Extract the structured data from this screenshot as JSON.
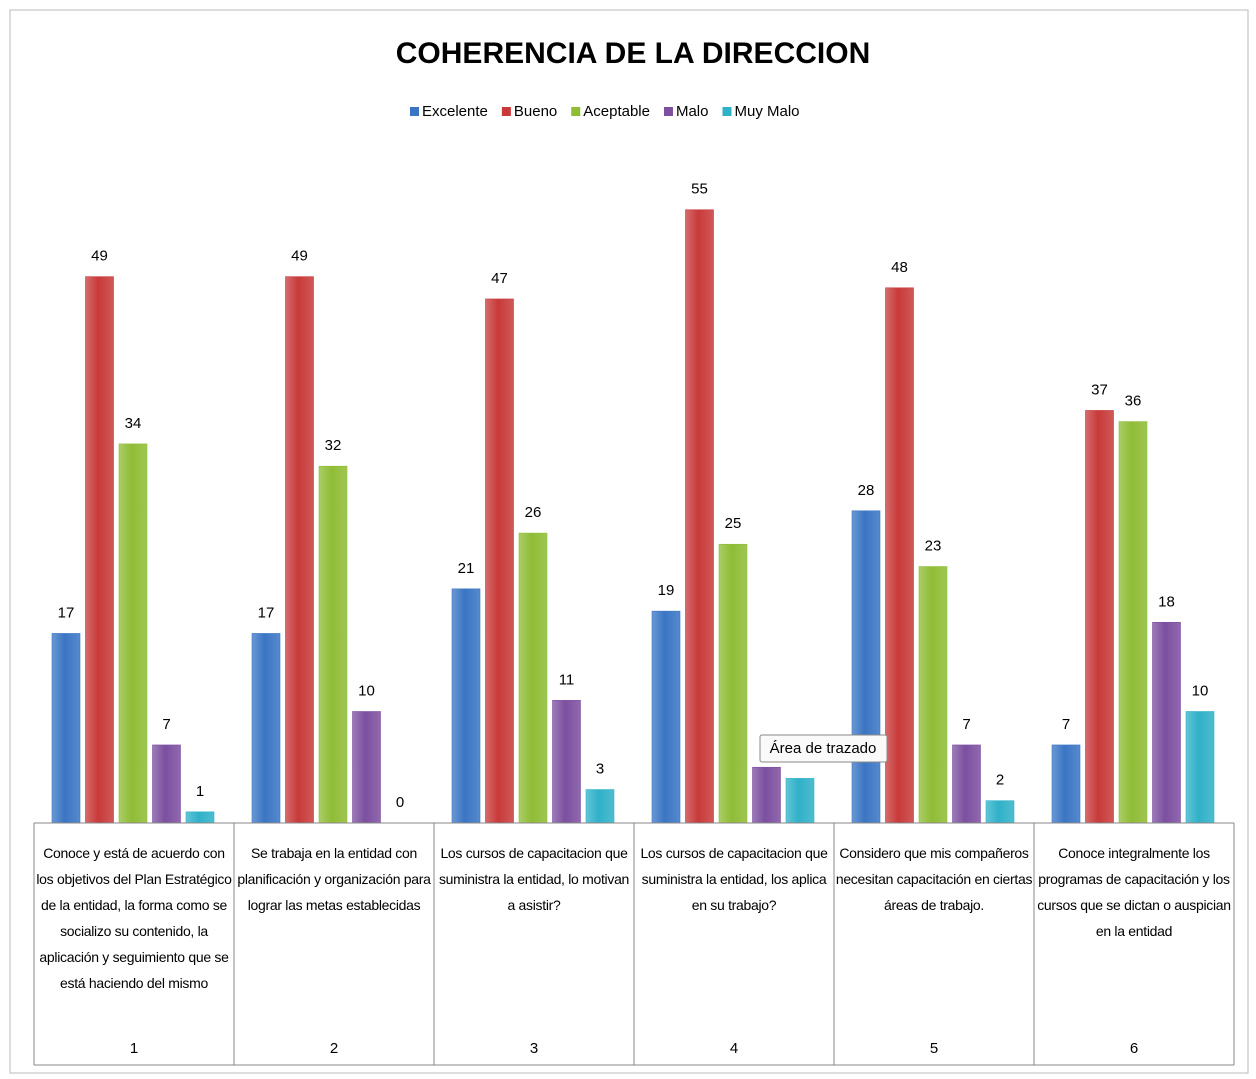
{
  "chart_data": {
    "type": "bar",
    "title": "COHERENCIA DE LA DIRECCION",
    "categories": [
      "Conoce y está de acuerdo con los objetivos del Plan Estratégico de la entidad, la forma como se socializo su contenido, la aplicación y seguimiento que se está haciendo del mismo",
      "Se trabaja en la entidad con planificación y organización para lograr las metas establecidas",
      "Los cursos de capacitacion que suministra la entidad, lo motivan a asistir?",
      "Los cursos de capacitacion que suministra la entidad, los aplica en su trabajo?",
      "Considero que mis compañeros necesitan capacitación en ciertas áreas de trabajo.",
      "Conoce integralmente los programas de capacitación y los cursos que se dictan o auspician en la entidad"
    ],
    "category_numbers": [
      1,
      2,
      3,
      4,
      5,
      6
    ],
    "series": [
      {
        "name": "Excelente",
        "color": "#3a75c4",
        "values": [
          17,
          17,
          21,
          19,
          28,
          7
        ]
      },
      {
        "name": "Bueno",
        "color": "#c83a3a",
        "values": [
          49,
          49,
          47,
          55,
          48,
          37
        ]
      },
      {
        "name": "Aceptable",
        "color": "#8fbc35",
        "values": [
          34,
          32,
          26,
          25,
          23,
          36
        ]
      },
      {
        "name": "Malo",
        "color": "#7c4fa0",
        "values": [
          7,
          10,
          11,
          5,
          7,
          18
        ]
      },
      {
        "name": "Muy Malo",
        "color": "#2fb1c8",
        "values": [
          1,
          0,
          3,
          4,
          2,
          10
        ]
      }
    ],
    "ylim": [
      0,
      60
    ],
    "legend": "top",
    "tooltip": "Área de trazado"
  }
}
